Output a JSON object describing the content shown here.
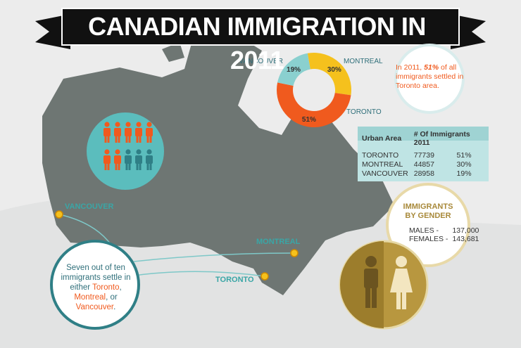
{
  "title": "CANADIAN IMMIGRATION IN 2011",
  "chart_data": {
    "type": "pie",
    "categories": [
      "MONTREAL",
      "TORONTO",
      "VANCOUVER"
    ],
    "values": [
      30,
      51,
      19
    ],
    "value_labels": [
      "30%",
      "51%",
      "19%"
    ],
    "colors": [
      "#f5c11d",
      "#f05a1e",
      "#8ad0cf"
    ]
  },
  "callout": {
    "prefix": "In 2011,",
    "emphasis": "51%",
    "suffix": "of all immigrants settled in Toronto area."
  },
  "table": {
    "headers": [
      "Urban Area",
      "# Of Immigrants 2011"
    ],
    "rows": [
      [
        "TORONTO",
        "77739",
        "51%"
      ],
      [
        "MONTREAL",
        "44857",
        "30%"
      ],
      [
        "VANCOUVER",
        "28958",
        "19%"
      ]
    ]
  },
  "gender": {
    "title": "IMMIGRANTS BY GENDER",
    "rows": [
      [
        "MALES -",
        "137,000"
      ],
      [
        "FEMALES -",
        "143,681"
      ]
    ]
  },
  "map_labels": [
    "VANCOUVER",
    "MONTREAL",
    "TORONTO"
  ],
  "note": [
    "Seven out of ten immigrants settle in either",
    "Toronto",
    ",",
    "Montreal",
    ", or",
    "Vancouver",
    "."
  ]
}
